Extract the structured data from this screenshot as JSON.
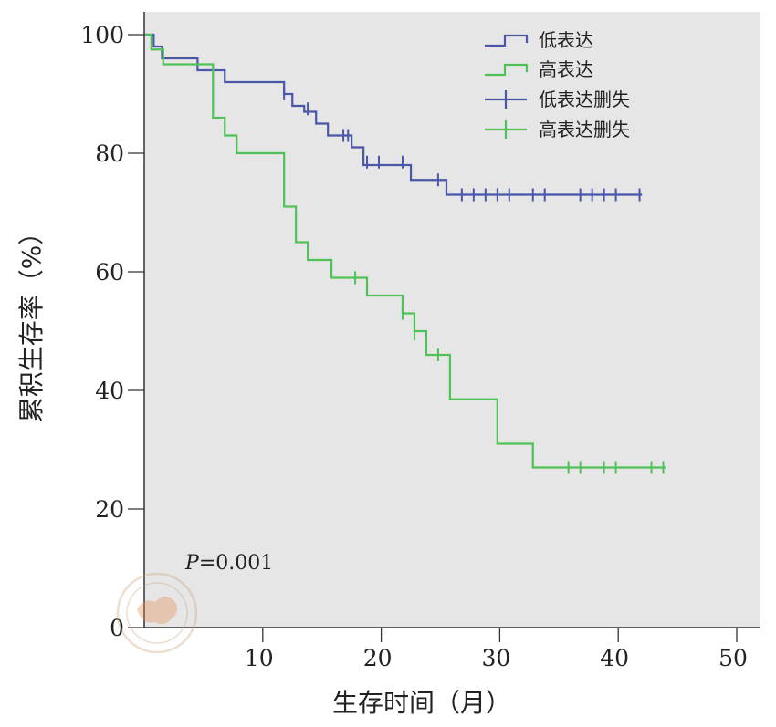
{
  "chart_data": {
    "type": "line",
    "subtype": "kaplan-meier",
    "title": "",
    "xlabel": "生存时间（月）",
    "ylabel": "累积生存率（%）",
    "xlim": [
      0,
      52
    ],
    "ylim": [
      0,
      104
    ],
    "xticks": [
      10,
      20,
      30,
      40,
      50
    ],
    "yticks": [
      0,
      20,
      40,
      60,
      80,
      100
    ],
    "annotation": {
      "italic": "P",
      "rest": "=0.001"
    },
    "legend_position": "top-right",
    "plot_background": "#e6e6e6",
    "series": [
      {
        "name": "低表达",
        "censor_name": "低表达删失",
        "color": "#4a56a8",
        "steps": [
          [
            0,
            100
          ],
          [
            0.8,
            98
          ],
          [
            1.5,
            96
          ],
          [
            4.5,
            94
          ],
          [
            6.8,
            92
          ],
          [
            11.8,
            90
          ],
          [
            12.5,
            88
          ],
          [
            13.5,
            87
          ],
          [
            14.5,
            85
          ],
          [
            15.5,
            83
          ],
          [
            17.5,
            81
          ],
          [
            18.5,
            78
          ],
          [
            22.5,
            75.5
          ],
          [
            25.5,
            73
          ],
          [
            42,
            73
          ]
        ],
        "censored": [
          [
            11.8,
            90
          ],
          [
            13.8,
            87.5
          ],
          [
            16.8,
            83
          ],
          [
            17.2,
            83
          ],
          [
            18.8,
            78.5
          ],
          [
            19.8,
            78.5
          ],
          [
            21.8,
            78.5
          ],
          [
            24.8,
            75.5
          ],
          [
            26.8,
            73
          ],
          [
            27.8,
            73
          ],
          [
            28.8,
            73
          ],
          [
            29.8,
            73
          ],
          [
            30.8,
            73
          ],
          [
            32.8,
            73
          ],
          [
            33.8,
            73
          ],
          [
            36.8,
            73
          ],
          [
            37.8,
            73
          ],
          [
            38.8,
            73
          ],
          [
            39.8,
            73
          ],
          [
            41.8,
            73
          ]
        ]
      },
      {
        "name": "高表达",
        "censor_name": "高表达删失",
        "color": "#4fc257",
        "steps": [
          [
            0,
            100
          ],
          [
            0.6,
            97.5
          ],
          [
            1.6,
            95
          ],
          [
            5.8,
            86
          ],
          [
            6.8,
            83
          ],
          [
            7.8,
            80
          ],
          [
            11.8,
            71
          ],
          [
            12.8,
            65
          ],
          [
            13.8,
            62
          ],
          [
            15.8,
            59
          ],
          [
            18.8,
            56
          ],
          [
            21.8,
            53
          ],
          [
            22.8,
            50
          ],
          [
            23.8,
            46
          ],
          [
            25.8,
            38.5
          ],
          [
            29.8,
            31
          ],
          [
            32.8,
            27
          ],
          [
            44,
            27
          ]
        ],
        "censored": [
          [
            17.8,
            59
          ],
          [
            21.8,
            53
          ],
          [
            22.8,
            49.5
          ],
          [
            24.8,
            46
          ],
          [
            35.8,
            27
          ],
          [
            36.8,
            27
          ],
          [
            38.8,
            27
          ],
          [
            39.8,
            27
          ],
          [
            42.8,
            27
          ],
          [
            43.8,
            27
          ]
        ]
      }
    ]
  }
}
